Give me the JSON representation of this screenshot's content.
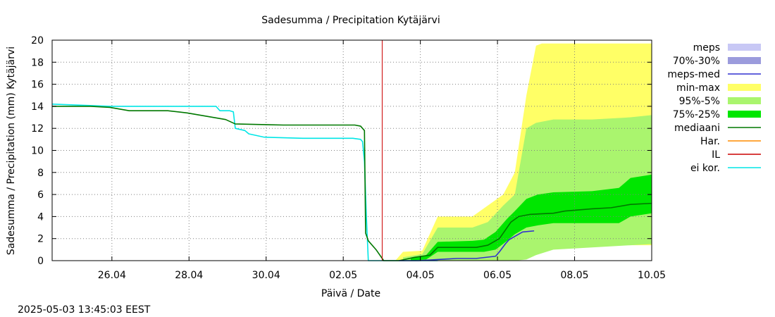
{
  "chart_data": {
    "type": "area",
    "title": "Sadesumma / Precipitation  Kytäjärvi",
    "xlabel": "Päivä / Date",
    "ylabel": "Sadesumma / Precipitation (mm)  Kytäjärvi",
    "ylim": [
      0,
      20
    ],
    "yticks": [
      0,
      2,
      4,
      6,
      8,
      10,
      12,
      14,
      16,
      18,
      20
    ],
    "xlim_days": [
      -8.3,
      0.0
    ],
    "xticks": [
      {
        "label": "26.04",
        "day": 1.55
      },
      {
        "label": "28.04",
        "day": 3.55
      },
      {
        "label": "30.04",
        "day": 5.55
      },
      {
        "label": "02.05",
        "day": 7.55
      },
      {
        "label": "04.05",
        "day": 9.55
      },
      {
        "label": "06.05",
        "day": 11.55
      },
      {
        "label": "08.05",
        "day": 13.55
      },
      {
        "label": "10.05",
        "day": 15.55
      }
    ],
    "x_range_days": [
      0,
      15.55
    ],
    "forecast_start_day": 8.56,
    "grid": true,
    "legend_position": "right",
    "timestamp": "2025-05-03 13:45:03 EEST",
    "colors": {
      "meps": "#c8c8f5",
      "p70_30": "#9b9bdc",
      "meps_med": "#3030d0",
      "min_max": "#ffff66",
      "p95_5": "#aaf56e",
      "p75_25": "#00e600",
      "mediaani": "#007800",
      "har": "#ff8c00",
      "il": "#cc0000",
      "ei_kor": "#00e6e6"
    },
    "legend": [
      {
        "key": "meps",
        "label": "meps",
        "style": "box"
      },
      {
        "key": "p70_30",
        "label": "70%-30%",
        "style": "box"
      },
      {
        "key": "meps_med",
        "label": "meps-med",
        "style": "line"
      },
      {
        "key": "min_max",
        "label": "min-max",
        "style": "box"
      },
      {
        "key": "p95_5",
        "label": "95%-5%",
        "style": "box"
      },
      {
        "key": "p75_25",
        "label": "75%-25%",
        "style": "box"
      },
      {
        "key": "mediaani",
        "label": "mediaani",
        "style": "line"
      },
      {
        "key": "har",
        "label": "Har.",
        "style": "line"
      },
      {
        "key": "il",
        "label": "IL",
        "style": "line"
      },
      {
        "key": "ei_kor",
        "label": "ei kor.",
        "style": "line"
      }
    ],
    "bands": [
      {
        "key": "min_max",
        "x": [
          8.9,
          9.1,
          9.6,
          10.0,
          10.9,
          11.3,
          11.7,
          12.0,
          12.3,
          12.55,
          12.7,
          13.0,
          15.55
        ],
        "upper": [
          0.0,
          0.8,
          0.9,
          4.0,
          4.0,
          5.0,
          6.0,
          8.0,
          15.0,
          19.5,
          19.7,
          19.7,
          19.7
        ],
        "lower": [
          0.0,
          0.0,
          0.0,
          0.0,
          0.0,
          0.0,
          0.0,
          0.0,
          0.2,
          1.0,
          1.4,
          1.4,
          1.4
        ]
      },
      {
        "key": "p95_5",
        "x": [
          9.1,
          9.6,
          10.0,
          10.9,
          11.3,
          11.7,
          12.0,
          12.3,
          12.55,
          13.0,
          14.0,
          15.0,
          15.55
        ],
        "upper": [
          0.3,
          0.6,
          3.0,
          3.0,
          3.5,
          5.0,
          6.0,
          12.0,
          12.5,
          12.8,
          12.8,
          13.0,
          13.2
        ],
        "lower": [
          0.0,
          0.0,
          0.0,
          0.0,
          0.0,
          0.0,
          0.0,
          0.1,
          0.5,
          1.0,
          1.2,
          1.4,
          1.5
        ]
      },
      {
        "key": "p75_25",
        "x": [
          9.3,
          9.7,
          10.0,
          10.9,
          11.2,
          11.5,
          11.8,
          12.0,
          12.3,
          12.6,
          13.0,
          14.0,
          14.7,
          15.0,
          15.55
        ],
        "upper": [
          0.2,
          0.5,
          1.7,
          1.8,
          1.9,
          2.6,
          3.8,
          4.5,
          5.6,
          6.0,
          6.2,
          6.3,
          6.6,
          7.5,
          7.8
        ],
        "lower": [
          0.0,
          0.1,
          0.8,
          0.8,
          0.8,
          1.0,
          1.8,
          2.4,
          3.0,
          3.2,
          3.4,
          3.4,
          3.4,
          4.0,
          4.3
        ]
      }
    ],
    "series": [
      {
        "key": "ei_kor",
        "name": "ei kor.",
        "x": [
          0.0,
          1.5,
          2.5,
          3.5,
          4.25,
          4.35,
          4.6,
          4.7,
          4.75,
          5.0,
          5.1,
          5.5,
          6.5,
          7.8,
          8.0,
          8.05,
          8.1,
          8.15,
          8.2,
          10.0
        ],
        "y": [
          14.2,
          14.0,
          14.0,
          14.0,
          14.0,
          13.6,
          13.6,
          13.5,
          12.0,
          11.8,
          11.5,
          11.2,
          11.1,
          11.1,
          11.0,
          10.8,
          9.0,
          4.0,
          0.0,
          0.0
        ]
      },
      {
        "key": "mediaani",
        "name": "mediaani",
        "x": [
          0.0,
          1.0,
          1.5,
          2.0,
          3.0,
          3.5,
          4.5,
          4.75,
          6.0,
          7.5,
          7.85,
          8.0,
          8.1,
          8.13,
          8.2,
          8.4,
          8.6,
          9.0,
          9.4,
          9.8,
          10.0,
          10.5,
          11.0,
          11.3,
          11.6,
          11.9,
          12.1,
          12.4,
          13.0,
          13.3,
          14.0,
          14.5,
          15.0,
          15.55
        ],
        "y": [
          14.0,
          14.0,
          13.9,
          13.6,
          13.6,
          13.4,
          12.8,
          12.4,
          12.3,
          12.3,
          12.3,
          12.2,
          11.8,
          2.5,
          1.8,
          1.0,
          0.0,
          0.0,
          0.3,
          0.5,
          1.2,
          1.2,
          1.2,
          1.4,
          2.0,
          3.5,
          4.0,
          4.2,
          4.3,
          4.5,
          4.7,
          4.8,
          5.1,
          5.2
        ]
      },
      {
        "key": "meps_med",
        "name": "meps-med",
        "x": [
          9.0,
          9.5,
          10.0,
          10.5,
          11.0,
          11.5,
          11.6,
          11.75,
          11.85,
          12.0,
          12.2,
          12.5
        ],
        "y": [
          0.0,
          0.0,
          0.1,
          0.2,
          0.2,
          0.4,
          0.8,
          1.5,
          1.9,
          2.2,
          2.6,
          2.7
        ]
      }
    ]
  }
}
